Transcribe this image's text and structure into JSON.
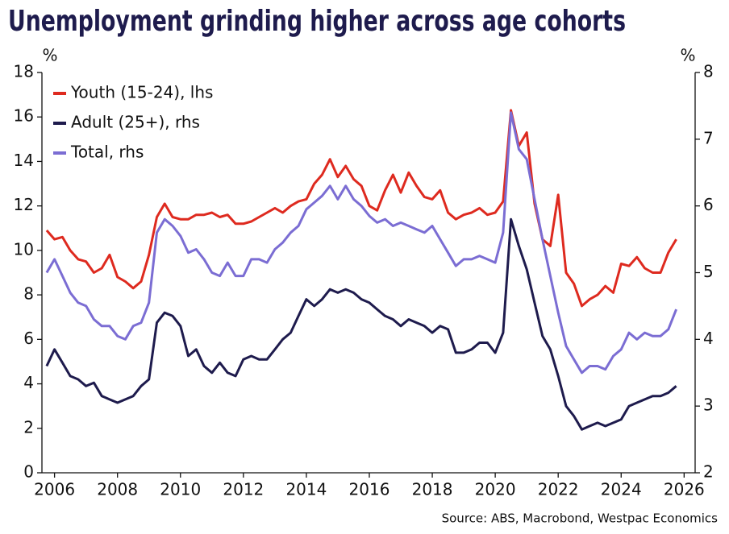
{
  "chart_data": {
    "type": "line",
    "title": "Unemployment grinding higher across age cohorts",
    "y_label": "%",
    "y2_label": "%",
    "source": "Source: ABS, Macrobond, Westpac Economics",
    "x": [
      2005.75,
      2006,
      2006.25,
      2006.5,
      2006.75,
      2007,
      2007.25,
      2007.5,
      2007.75,
      2008,
      2008.25,
      2008.5,
      2008.75,
      2009,
      2009.25,
      2009.5,
      2009.75,
      2010,
      2010.25,
      2010.5,
      2010.75,
      2011,
      2011.25,
      2011.5,
      2011.75,
      2012,
      2012.25,
      2012.5,
      2012.75,
      2013,
      2013.25,
      2013.5,
      2013.75,
      2014,
      2014.25,
      2014.5,
      2014.75,
      2015,
      2015.25,
      2015.5,
      2015.75,
      2016,
      2016.25,
      2016.5,
      2016.75,
      2017,
      2017.25,
      2017.5,
      2017.75,
      2018,
      2018.25,
      2018.5,
      2018.75,
      2019,
      2019.25,
      2019.5,
      2019.75,
      2020,
      2020.25,
      2020.5,
      2020.75,
      2021,
      2021.25,
      2021.5,
      2021.75,
      2022,
      2022.25,
      2022.5,
      2022.75,
      2023,
      2023.25,
      2023.5,
      2023.75,
      2024,
      2024.25,
      2024.5,
      2024.75,
      2025,
      2025.25,
      2025.5,
      2025.75
    ],
    "series": [
      {
        "name": "Youth (15-24), lhs",
        "color": "#de2a1f",
        "axis": "y",
        "values": [
          10.9,
          10.5,
          10.6,
          10.0,
          9.6,
          9.5,
          9.0,
          9.2,
          9.8,
          8.8,
          8.6,
          8.3,
          8.6,
          9.8,
          11.5,
          12.1,
          11.5,
          11.4,
          11.4,
          11.6,
          11.6,
          11.7,
          11.5,
          11.6,
          11.2,
          11.2,
          11.3,
          11.5,
          11.7,
          11.9,
          11.7,
          12.0,
          12.2,
          12.3,
          13.0,
          13.4,
          14.1,
          13.3,
          13.8,
          13.2,
          12.9,
          12.0,
          11.8,
          12.7,
          13.4,
          12.6,
          13.5,
          12.9,
          12.4,
          12.3,
          12.7,
          11.7,
          11.4,
          11.6,
          11.7,
          11.9,
          11.6,
          11.7,
          12.2,
          16.3,
          14.7,
          15.3,
          12.1,
          10.5,
          10.2,
          12.5,
          9.0,
          8.5,
          7.5,
          7.8,
          8.0,
          8.4,
          8.1,
          9.4,
          9.3,
          9.7,
          9.2,
          9.0,
          9.0,
          9.9,
          10.5
        ]
      },
      {
        "name": "Adult (25+), rhs",
        "color": "#1e1b4d",
        "axis": "y2",
        "values": [
          3.6,
          3.85,
          3.65,
          3.45,
          3.4,
          3.3,
          3.35,
          3.15,
          3.1,
          3.05,
          3.1,
          3.15,
          3.3,
          3.4,
          4.25,
          4.4,
          4.35,
          4.2,
          3.75,
          3.85,
          3.6,
          3.5,
          3.65,
          3.5,
          3.45,
          3.7,
          3.75,
          3.7,
          3.7,
          3.85,
          4.0,
          4.1,
          4.35,
          4.6,
          4.5,
          4.6,
          4.75,
          4.7,
          4.75,
          4.7,
          4.6,
          4.55,
          4.45,
          4.35,
          4.3,
          4.2,
          4.3,
          4.25,
          4.2,
          4.1,
          4.2,
          4.15,
          3.8,
          3.8,
          3.85,
          3.95,
          3.95,
          3.8,
          4.1,
          5.8,
          5.4,
          5.05,
          4.55,
          4.05,
          3.85,
          3.45,
          3.0,
          2.85,
          2.65,
          2.7,
          2.75,
          2.7,
          2.75,
          2.8,
          3.0,
          3.05,
          3.1,
          3.15,
          3.15,
          3.2,
          3.3
        ]
      },
      {
        "name": "Total, rhs",
        "color": "#7b6dd3",
        "axis": "y2",
        "values": [
          5.0,
          5.2,
          4.95,
          4.7,
          4.55,
          4.5,
          4.3,
          4.2,
          4.2,
          4.05,
          4.0,
          4.2,
          4.25,
          4.55,
          5.6,
          5.8,
          5.7,
          5.55,
          5.3,
          5.35,
          5.2,
          5.0,
          4.95,
          5.15,
          4.95,
          4.95,
          5.2,
          5.2,
          5.15,
          5.35,
          5.45,
          5.6,
          5.7,
          5.95,
          6.05,
          6.15,
          6.3,
          6.1,
          6.3,
          6.1,
          6.0,
          5.85,
          5.75,
          5.8,
          5.7,
          5.75,
          5.7,
          5.65,
          5.6,
          5.7,
          5.5,
          5.3,
          5.1,
          5.2,
          5.2,
          5.25,
          5.2,
          5.15,
          5.6,
          7.4,
          6.85,
          6.7,
          6.1,
          5.5,
          4.95,
          4.4,
          3.9,
          3.7,
          3.5,
          3.6,
          3.6,
          3.55,
          3.75,
          3.85,
          4.1,
          4.0,
          4.1,
          4.05,
          4.05,
          4.15,
          4.45
        ]
      }
    ],
    "xlim": [
      2005.6,
      2026.35
    ],
    "xticks": [
      2006,
      2008,
      2010,
      2012,
      2014,
      2016,
      2018,
      2020,
      2022,
      2024,
      2026
    ],
    "ylim": [
      0,
      18
    ],
    "yticks": [
      0,
      2,
      4,
      6,
      8,
      10,
      12,
      14,
      16,
      18
    ],
    "y2lim": [
      2,
      8
    ],
    "y2ticks": [
      2,
      3,
      4,
      5,
      6,
      7,
      8
    ],
    "grid": false,
    "legend": "upper left"
  }
}
